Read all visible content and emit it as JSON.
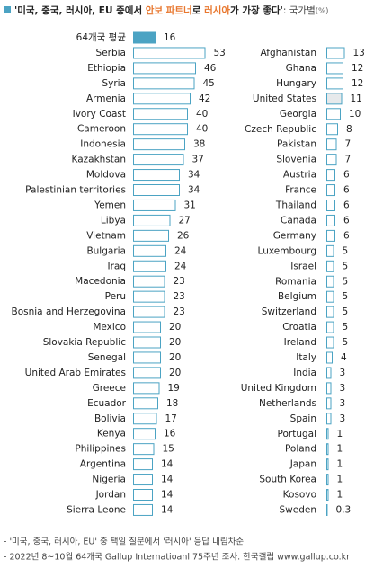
{
  "header": {
    "title": [
      {
        "text": "'미국, 중국, 러시아, EU 중에서 ",
        "color": "#222222"
      },
      {
        "text": "안보 파트너",
        "color": "#e8772e"
      },
      {
        "text": "로 ",
        "color": "#222222"
      },
      {
        "text": "러시아",
        "color": "#e8772e"
      },
      {
        "text": "가 가장 좋다'",
        "color": "#222222"
      },
      {
        "text": ": 국가별",
        "color": "#444444"
      },
      {
        "text": "(%)",
        "color": "#666666"
      }
    ],
    "marker_color": "#4ba3c3"
  },
  "chart_data": [
    {
      "type": "hbar",
      "color": "#4ba3c3",
      "fill": "#ffffff",
      "fill_overrides": [
        {
          "index": 0,
          "color": "#4ba3c3"
        }
      ],
      "categories": [
        "64개국 평균",
        "Serbia",
        "Ethiopia",
        "Syria",
        "Armenia",
        "Ivory Coast",
        "Cameroon",
        "Indonesia",
        "Kazakhstan",
        "Moldova",
        "Palestinian territories",
        "Yemen",
        "Libya",
        "Vietnam",
        "Bulgaria",
        "Iraq",
        "Macedonia",
        "Peru",
        "Bosnia and Herzegovina",
        "Mexico",
        "Slovakia Republic",
        "Senegal",
        "United Arab Emirates",
        "Greece",
        "Ecuador",
        "Bolivia",
        "Kenya",
        "Philippines",
        "Argentina",
        "Nigeria",
        "Jordan",
        "Sierra Leone"
      ],
      "values": [
        16,
        53,
        46,
        45,
        42,
        40,
        40,
        38,
        37,
        34,
        34,
        31,
        27,
        26,
        24,
        24,
        23,
        23,
        23,
        20,
        20,
        20,
        20,
        19,
        18,
        17,
        16,
        15,
        14,
        14,
        14,
        14
      ]
    },
    {
      "type": "hbar",
      "color": "#4ba3c3",
      "fill": "#ffffff",
      "fill_overrides": [
        {
          "index": 3,
          "color": "#e6e9eb"
        }
      ],
      "categories": [
        "Afghanistan",
        "Ghana",
        "Hungary",
        "United States",
        "Georgia",
        "Czech Republic",
        "Pakistan",
        "Slovenia",
        "Austria",
        "France",
        "Thailand",
        "Canada",
        "Germany",
        "Luxembourg",
        "Israel",
        "Romania",
        "Belgium",
        "Switzerland",
        "Croatia",
        "Ireland",
        "Italy",
        "India",
        "United Kingdom",
        "Netherlands",
        "Spain",
        "Portugal",
        "Poland",
        "Japan",
        "South Korea",
        "Kosovo",
        "Sweden"
      ],
      "values": [
        13,
        12,
        12,
        11,
        10,
        8,
        7,
        7,
        6,
        6,
        6,
        6,
        6,
        5,
        5,
        5,
        5,
        5,
        5,
        5,
        4,
        3,
        3,
        3,
        3,
        1,
        1,
        1,
        1,
        1,
        0.3
      ]
    }
  ],
  "notes": [
    "- '미국, 중국, 러시아, EU' 중 택일 질문에서 '러시아' 응답 내림차순",
    "- 2022년 8~10월 64개국 Gallup Internatioanl 75주년 조사. 한국갤럽 www.gallup.co.kr"
  ]
}
